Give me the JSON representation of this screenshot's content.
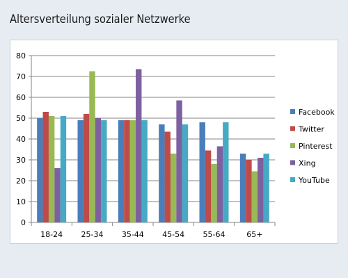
{
  "chart_data": {
    "type": "bar",
    "title": "Altersverteilung sozialer Netzwerke",
    "xlabel": "",
    "ylabel": "",
    "ylim": [
      0,
      80
    ],
    "yticks": [
      0,
      10,
      20,
      30,
      40,
      50,
      60,
      70,
      80
    ],
    "grid": true,
    "legend_position": "right",
    "categories": [
      "18-24",
      "25-34",
      "35-44",
      "45-54",
      "55-64",
      "65+"
    ],
    "series": [
      {
        "name": "Facebook",
        "color": "#4a7ebb",
        "values": [
          50,
          49,
          49,
          47,
          48,
          33
        ]
      },
      {
        "name": "Twitter",
        "color": "#be4b48",
        "values": [
          53,
          52,
          49,
          43.5,
          34.5,
          30
        ]
      },
      {
        "name": "Pinterest",
        "color": "#98b954",
        "values": [
          51,
          72.5,
          49,
          33,
          28,
          24.5
        ]
      },
      {
        "name": "Xing",
        "color": "#7d60a0",
        "values": [
          26,
          50,
          73.5,
          58.5,
          36.5,
          31
        ]
      },
      {
        "name": "YouTube",
        "color": "#46aac5",
        "values": [
          51,
          49,
          49,
          47,
          48,
          33
        ]
      }
    ]
  }
}
